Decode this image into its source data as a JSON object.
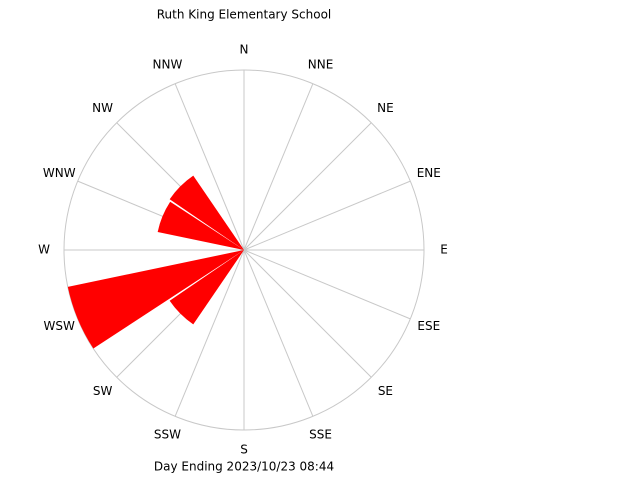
{
  "chart_data": {
    "type": "wind-rose",
    "title": "Ruth King Elementary School",
    "subtitle": "Day Ending 2023/10/23 08:44",
    "categories": [
      "N",
      "NNE",
      "NE",
      "ENE",
      "E",
      "ESE",
      "SE",
      "SSE",
      "S",
      "SSW",
      "SW",
      "WSW",
      "W",
      "WNW",
      "NW",
      "NNW"
    ],
    "values": [
      0,
      0,
      0,
      0,
      0,
      0,
      0,
      0,
      0,
      0,
      0.5,
      1.0,
      0,
      0.49,
      0.5,
      0
    ],
    "color": "#ff0000",
    "rlim": [
      0,
      1
    ],
    "grid": true
  }
}
